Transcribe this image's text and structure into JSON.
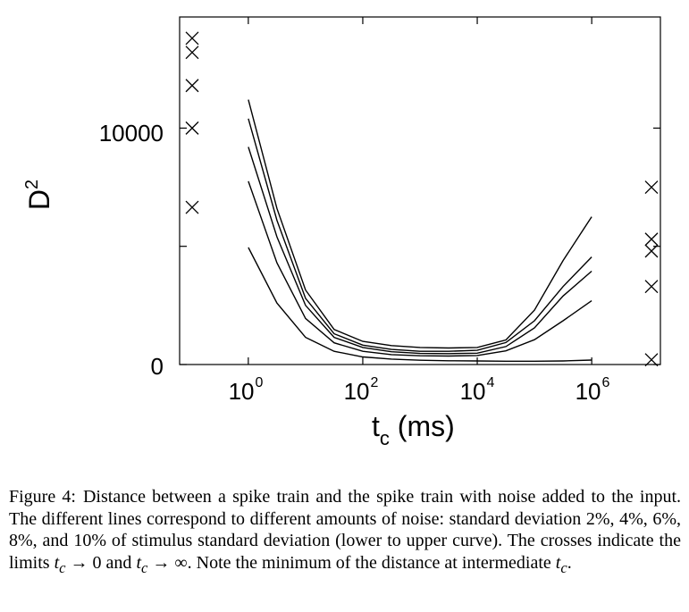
{
  "chart_data": {
    "type": "line",
    "xscale": "log10",
    "xlim_log10": [
      -1.2,
      7.2
    ],
    "ylim": [
      0,
      14700
    ],
    "y_ticks": [
      0,
      5000,
      10000
    ],
    "y_tick_labels": [
      {
        "value": 0,
        "text": "0"
      },
      {
        "value": 10000,
        "text": "10000"
      }
    ],
    "x_tick_labels": [
      {
        "exp": 0,
        "base": "10",
        "sup": "0"
      },
      {
        "exp": 2,
        "base": "10",
        "sup": "2"
      },
      {
        "exp": 4,
        "base": "10",
        "sup": "4"
      },
      {
        "exp": 6,
        "base": "10",
        "sup": "6"
      }
    ],
    "ylabel": {
      "base": "D",
      "sup": "2"
    },
    "xlabel": {
      "base": "t",
      "sub": "c",
      "rest": " (ms)"
    },
    "x_log10": [
      0,
      0.5,
      1,
      1.5,
      2,
      2.5,
      3,
      3.5,
      4,
      4.5,
      5,
      5.5,
      6
    ],
    "series": [
      {
        "name": "2%",
        "values": [
          4950,
          2600,
          1150,
          560,
          320,
          230,
          180,
          160,
          150,
          140,
          140,
          150,
          190
        ]
      },
      {
        "name": "4%",
        "values": [
          7750,
          4300,
          1950,
          920,
          560,
          420,
          370,
          360,
          380,
          580,
          1050,
          1850,
          2700
        ]
      },
      {
        "name": "6%",
        "values": [
          9200,
          5400,
          2500,
          1150,
          720,
          540,
          470,
          460,
          480,
          760,
          1550,
          2900,
          3950
        ]
      },
      {
        "name": "8%",
        "values": [
          10400,
          6100,
          2800,
          1300,
          820,
          640,
          560,
          560,
          600,
          930,
          1850,
          3300,
          4550
        ]
      },
      {
        "name": "10%",
        "values": [
          11200,
          6600,
          3150,
          1480,
          980,
          800,
          720,
          700,
          720,
          1040,
          2300,
          4400,
          6250
        ]
      }
    ],
    "limit_crosses": [
      {
        "limit": "t_c -> 0",
        "values": [
          6650,
          10000,
          11800,
          13200,
          13800
        ]
      },
      {
        "limit": "t_c -> infinity",
        "values": [
          200,
          3300,
          4800,
          5300,
          7500
        ]
      }
    ]
  },
  "caption": {
    "label": "Figure 4:",
    "part1": "Distance between a spike train and the spike train with noise added to the input. The different lines correspond to different amounts of noise: standard deviation 2%, 4%, 6%, 8%, and 10% of stimulus standard deviation (lower to upper curve). The crosses indicate the limits ",
    "tc1": "t",
    "tc1_sub": "c",
    "arrow1": " → 0 and ",
    "tc2": "t",
    "tc2_sub": "c",
    "arrow2": " → ∞. Note the minimum of the distance at intermediate ",
    "tc3": "t",
    "tc3_sub": "c",
    "end": "."
  }
}
